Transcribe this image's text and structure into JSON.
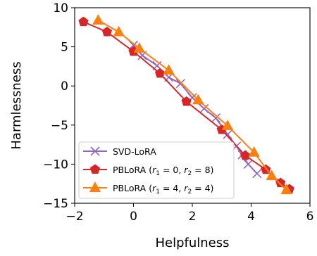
{
  "chart_data": {
    "type": "line",
    "title": "",
    "xlabel": "Helpfulness",
    "ylabel": "Harmlessness",
    "xlim": [
      -2,
      6
    ],
    "ylim": [
      -15,
      10
    ],
    "xticks": [
      -2,
      0,
      2,
      4,
      6
    ],
    "yticks": [
      -15,
      -10,
      -5,
      0,
      5,
      10
    ],
    "xtick_labels": [
      "−2",
      "0",
      "2",
      "4",
      "6"
    ],
    "ytick_labels": [
      "−15",
      "−10",
      "−5",
      "0",
      "5",
      "10"
    ],
    "grid": false,
    "legend_position": "lower-left",
    "series": [
      {
        "name": "SVD-LoRA",
        "color": "#9467bd",
        "marker": "x",
        "x": [
          0.0,
          0.3,
          0.8,
          1.2,
          1.6,
          2.0,
          2.4,
          2.8,
          3.2,
          3.5,
          3.7,
          3.9,
          4.2
        ],
        "y": [
          5.2,
          3.9,
          2.6,
          1.1,
          0.3,
          -1.5,
          -2.9,
          -4.1,
          -6.2,
          -7.7,
          -8.8,
          -10.0,
          -11.2
        ]
      },
      {
        "name": "PBLoRA (r1=0, r2=8)",
        "name_parts": [
          "PBLoRA (",
          "r",
          "1",
          " = 0, ",
          "r",
          "2",
          " = 8)"
        ],
        "color": "#d62728",
        "marker": "pentagon",
        "x": [
          -1.7,
          -0.9,
          0.0,
          0.9,
          1.8,
          3.0,
          3.8,
          4.5,
          5.0,
          5.3
        ],
        "y": [
          8.2,
          6.9,
          4.4,
          1.6,
          -2.0,
          -5.6,
          -8.9,
          -10.7,
          -12.4,
          -13.2
        ]
      },
      {
        "name": "PBLoRA (r1=4, r2=4)",
        "name_parts": [
          "PBLoRA (",
          "r",
          "1",
          " = 4, ",
          "r",
          "2",
          " = 4)"
        ],
        "color": "#ff7f0e",
        "marker": "triangle",
        "x": [
          -1.2,
          -0.5,
          0.2,
          1.2,
          2.2,
          3.2,
          4.1,
          4.7,
          5.2
        ],
        "y": [
          8.4,
          6.9,
          4.8,
          2.0,
          -1.8,
          -5.1,
          -8.5,
          -11.5,
          -13.3
        ]
      }
    ]
  }
}
